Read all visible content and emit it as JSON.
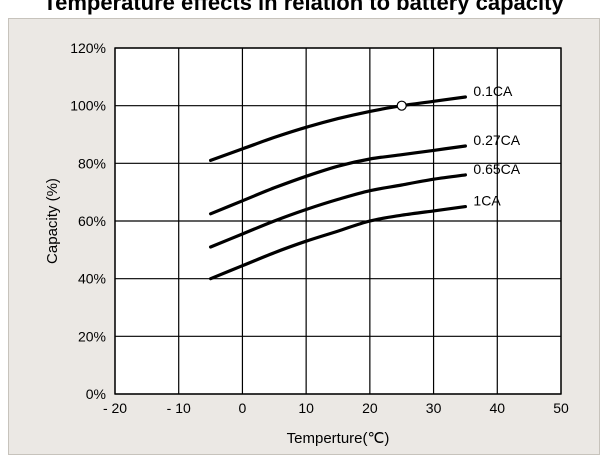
{
  "header": {
    "title_fragment": "Temperature effects in relation to battery capacity"
  },
  "colors": {
    "panel_background": "#ebe8e4",
    "plot_background": "#ffffff",
    "grid": "#000000",
    "line": "#000000"
  },
  "chart_data": {
    "type": "line",
    "title": "",
    "xlabel": "Temperture(℃)",
    "ylabel": "Capacity (%)",
    "xlim": [
      -20,
      50
    ],
    "ylim": [
      0,
      120
    ],
    "x_ticks": [
      -20,
      -10,
      0,
      10,
      20,
      30,
      40,
      50
    ],
    "x_tick_labels": [
      "- 20",
      "- 10",
      "0",
      "10",
      "20",
      "30",
      "40",
      "50"
    ],
    "y_ticks": [
      0,
      20,
      40,
      60,
      80,
      100,
      120
    ],
    "y_tick_labels": [
      "0%",
      "20%",
      "40%",
      "60%",
      "80%",
      "100%",
      "120%"
    ],
    "grid": true,
    "legend": "inline labels at right end of each line",
    "series": [
      {
        "name": "0.1CA",
        "x": [
          -5,
          0,
          5,
          10,
          15,
          20,
          25,
          30,
          35
        ],
        "y": [
          81,
          85,
          89,
          92.5,
          95.5,
          98,
          100,
          101.5,
          103
        ]
      },
      {
        "name": "0.27CA",
        "x": [
          -5,
          0,
          5,
          10,
          15,
          20,
          25,
          30,
          35
        ],
        "y": [
          62.5,
          67,
          71.5,
          75.5,
          79,
          81.5,
          83,
          84.5,
          86
        ]
      },
      {
        "name": "0.65CA",
        "x": [
          -5,
          0,
          5,
          10,
          15,
          20,
          25,
          30,
          35
        ],
        "y": [
          51,
          55.5,
          60,
          64,
          67.5,
          70.5,
          72.5,
          74.5,
          76
        ]
      },
      {
        "name": "1CA",
        "x": [
          -5,
          0,
          5,
          10,
          15,
          20,
          25,
          30,
          35
        ],
        "y": [
          40,
          44.5,
          49,
          53,
          56.5,
          60,
          62,
          63.5,
          65
        ]
      }
    ],
    "markers": [
      {
        "series": "0.1CA",
        "x": 25,
        "y": 100,
        "shape": "open-circle"
      }
    ]
  }
}
